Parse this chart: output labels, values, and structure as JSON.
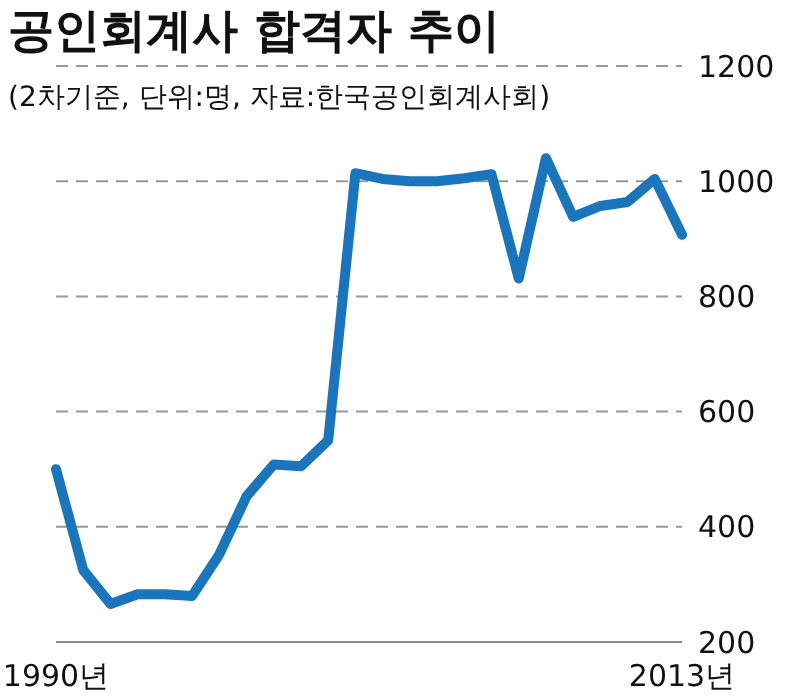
{
  "chart_data": {
    "type": "line",
    "title": "공인회계사 합격자 추이",
    "subtitle": "(2차기준, 단위:명, 자료:한국공인회계사회)",
    "categories": [
      "1990년",
      null,
      null,
      null,
      null,
      null,
      null,
      null,
      null,
      null,
      null,
      null,
      null,
      null,
      null,
      null,
      null,
      null,
      null,
      null,
      null,
      null,
      null,
      "2013년"
    ],
    "series": [
      {
        "color": "#1b75bc",
        "values": [
          500,
          325,
          266,
          283,
          283,
          280,
          352,
          453,
          508,
          505,
          550,
          1014,
          1004,
          1000,
          1000,
          1005,
          1012,
          831,
          1040,
          938,
          957,
          964,
          1004,
          907
        ]
      }
    ],
    "ylim": [
      200,
      1200
    ],
    "yticks": [
      200,
      400,
      600,
      800,
      1000,
      1200
    ],
    "grid": "y",
    "marker": "none",
    "line_style": "solid"
  }
}
